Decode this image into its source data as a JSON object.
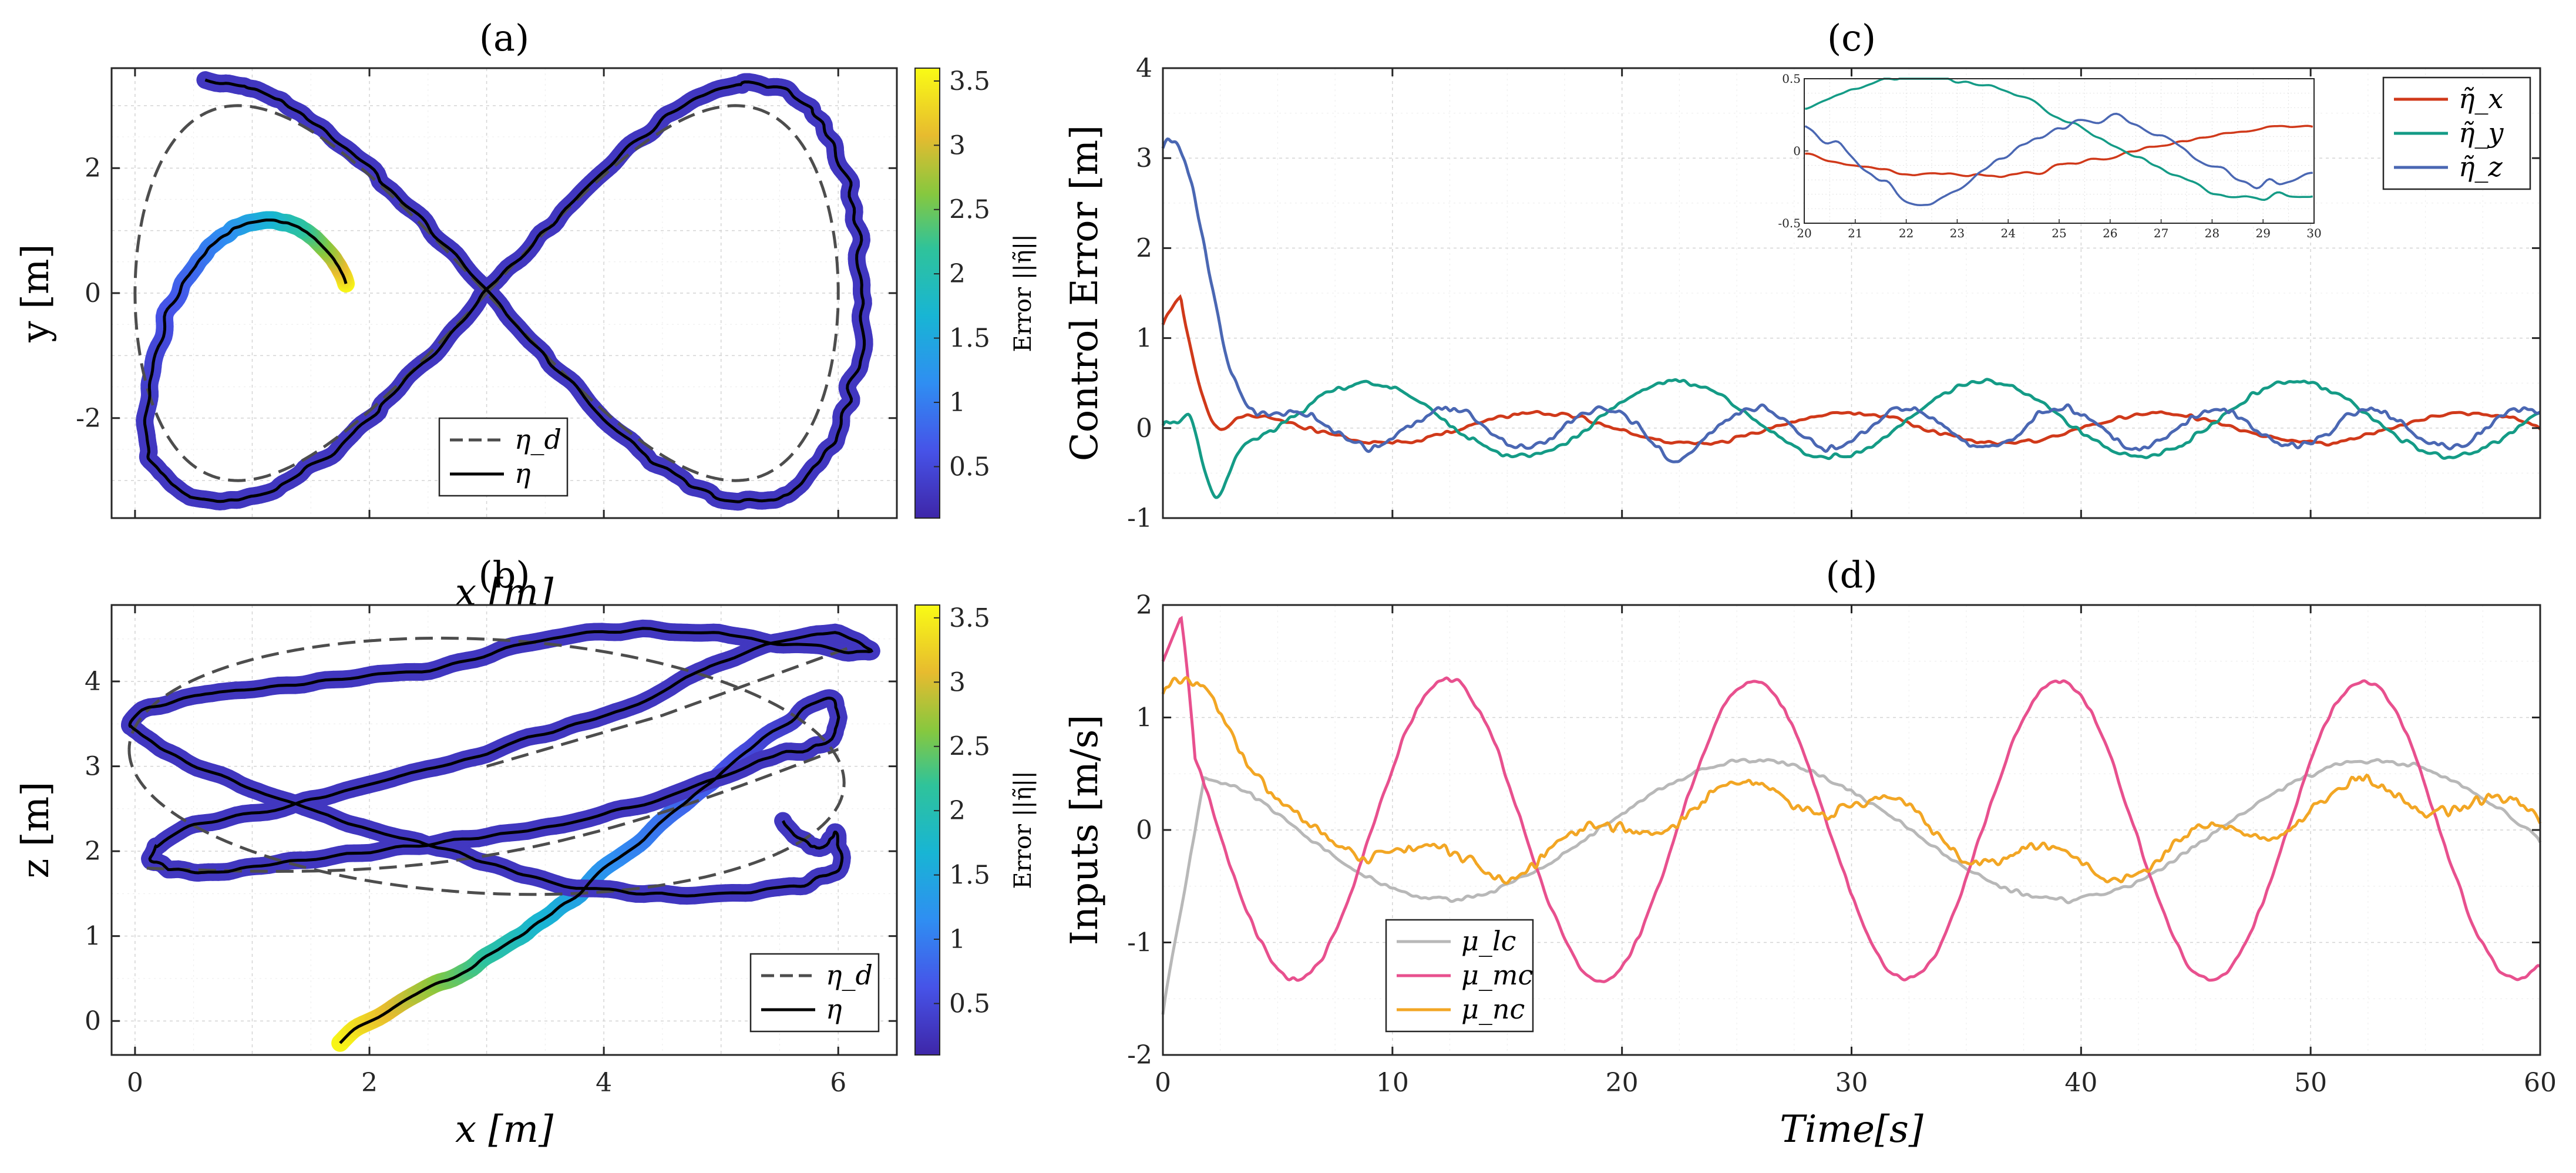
{
  "chart_data": [
    {
      "id": "a",
      "type": "line",
      "title": "(a)",
      "xlabel": "x [m]",
      "ylabel": "y [m]",
      "xlim": [
        -0.2,
        6.5
      ],
      "ylim": [
        -3.6,
        3.6
      ],
      "xticks": [
        "0",
        "2",
        "4",
        "6"
      ],
      "yticks": [
        "-2",
        "0",
        "2"
      ],
      "grid": true,
      "legend": {
        "position": "bottom-center",
        "entries": [
          "η_d",
          "η"
        ]
      },
      "series": [
        {
          "name": "η_d",
          "style": "dashed",
          "color": "#4d4d4d",
          "description": "lemniscate reference: x = 3 + 3 sin(t), y = 3 sin(2t)"
        },
        {
          "name": "η",
          "style": "solid",
          "color": "#000000",
          "start": [
            1.8,
            0.15
          ],
          "description": "actual trajectory converging onto the figure-eight, colored by error"
        }
      ],
      "colorbar": {
        "label": "Error ||η̃||",
        "range": [
          0.1,
          3.6
        ],
        "ticks": [
          "0.5",
          "1",
          "1.5",
          "2",
          "2.5",
          "3",
          "3.5"
        ]
      }
    },
    {
      "id": "b",
      "type": "line",
      "title": "(b)",
      "xlabel": "x [m]",
      "ylabel": "z [m]",
      "xlim": [
        -0.2,
        6.5
      ],
      "ylim": [
        -0.4,
        4.9
      ],
      "xticks": [
        "0",
        "2",
        "4",
        "6"
      ],
      "yticks": [
        "0",
        "1",
        "2",
        "3",
        "4"
      ],
      "grid": true,
      "legend": {
        "position": "bottom-right",
        "entries": [
          "η_d",
          "η"
        ]
      },
      "series": [
        {
          "name": "η_d",
          "style": "dashed",
          "color": "#4d4d4d"
        },
        {
          "name": "η",
          "style": "solid",
          "color": "#000000",
          "start": [
            1.8,
            -0.2
          ]
        }
      ],
      "colorbar": {
        "label": "Error ||η̃||",
        "range": [
          0.1,
          3.6
        ],
        "ticks": [
          "0.5",
          "1",
          "1.5",
          "2",
          "2.5",
          "3",
          "3.5"
        ]
      }
    },
    {
      "id": "c",
      "type": "line",
      "title": "(c)",
      "xlabel": "",
      "ylabel": "Control Error [m]",
      "xlim": [
        0,
        60
      ],
      "ylim": [
        -1,
        4
      ],
      "yticks": [
        "-1",
        "0",
        "1",
        "2",
        "3",
        "4"
      ],
      "grid": true,
      "legend": {
        "position": "top-right",
        "entries": [
          "η̃_x",
          "η̃_y",
          "η̃_z"
        ]
      },
      "series": [
        {
          "name": "η̃_x",
          "color": "#d0391a",
          "initial": 1.2,
          "peak": 1.45,
          "amplitude": 0.18,
          "period": 13.5
        },
        {
          "name": "η̃_y",
          "color": "#149b86",
          "initial": 0.1,
          "amplitude": 0.42,
          "period": 13.5
        },
        {
          "name": "η̃_z",
          "color": "#4a67b3",
          "initial": 3.2,
          "amplitude": 0.25,
          "period": 6.7
        }
      ],
      "inset": {
        "xlim": [
          20,
          30
        ],
        "ylim": [
          -0.5,
          0.5
        ],
        "xticks": [
          "20",
          "21",
          "22",
          "23",
          "24",
          "25",
          "26",
          "27",
          "28",
          "29",
          "30"
        ],
        "yticks": [
          "-0.5",
          "0",
          "0.5"
        ]
      }
    },
    {
      "id": "d",
      "type": "line",
      "title": "(d)",
      "xlabel": "Time[s]",
      "ylabel": "Inputs [m/s]",
      "xlim": [
        0,
        60
      ],
      "ylim": [
        -2,
        2
      ],
      "xticks": [
        "0",
        "10",
        "20",
        "30",
        "40",
        "50",
        "60"
      ],
      "yticks": [
        "-2",
        "-1",
        "0",
        "1",
        "2"
      ],
      "grid": true,
      "legend": {
        "position": "bottom-left",
        "entries": [
          "μ_lc",
          "μ_mc",
          "μ_nc"
        ]
      },
      "series": [
        {
          "name": "μ_lc",
          "color": "#b8b8b8",
          "initial": -1.6,
          "amplitude": 0.65,
          "period": 27
        },
        {
          "name": "μ_mc",
          "color": "#e8508e",
          "initial": 1.5,
          "peak": 1.9,
          "amplitude": 1.35,
          "period": 13.3
        },
        {
          "name": "μ_nc",
          "color": "#f2a624",
          "initial": 1.3,
          "amplitude": 0.35,
          "period": 27
        }
      ]
    }
  ]
}
